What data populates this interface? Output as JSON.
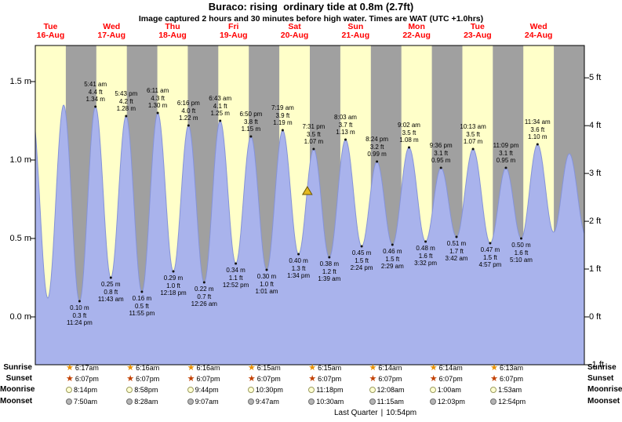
{
  "title": "Buraco: rising  ordinary tide at 0.8m (2.7ft)",
  "subtitle": "Image captured 2 hours and 30 minutes before high water. Times are WAT (UTC +1.0hrs)",
  "colors": {
    "plot_bg": "#ffffc9",
    "night": "#a0a0a0",
    "tide_fill": "#a9b3ec",
    "tide_stroke": "#8593d8",
    "day_label": "#ff0000",
    "marker_fill": "#e3b920",
    "marker_stroke": "#6b5400"
  },
  "chart_data": {
    "type": "area",
    "title": "Buraco: rising  ordinary tide at 0.8m (2.7ft)",
    "x_axis": {
      "start": "Tue 16-Aug 6:00am WAT",
      "hours_span": 216,
      "first_noon_hour": 6
    },
    "y_axis_left": {
      "unit": "m",
      "range_m": [
        -0.305,
        1.73
      ],
      "ticks": [
        {
          "label": "1.5 m",
          "m": 1.5
        },
        {
          "label": "1.0 m",
          "m": 1.0
        },
        {
          "label": "0.5 m",
          "m": 0.5
        },
        {
          "label": "0.0 m",
          "m": 0.0
        }
      ]
    },
    "y_axis_right": {
      "unit": "ft",
      "ticks": [
        {
          "label": "5 ft",
          "ft": 5
        },
        {
          "label": "4 ft",
          "ft": 4
        },
        {
          "label": "3 ft",
          "ft": 3
        },
        {
          "label": "2 ft",
          "ft": 2
        },
        {
          "label": "1 ft",
          "ft": 1
        },
        {
          "label": "0 ft",
          "ft": 0
        },
        {
          "label": "-1 ft",
          "ft": -1
        }
      ]
    },
    "days": [
      {
        "name": "Tue",
        "date": "16-Aug"
      },
      {
        "name": "Wed",
        "date": "17-Aug"
      },
      {
        "name": "Thu",
        "date": "18-Aug"
      },
      {
        "name": "Fri",
        "date": "19-Aug"
      },
      {
        "name": "Sat",
        "date": "20-Aug"
      },
      {
        "name": "Sun",
        "date": "21-Aug"
      },
      {
        "name": "Mon",
        "date": "22-Aug"
      },
      {
        "name": "Tue",
        "date": "23-Aug"
      },
      {
        "name": "Wed",
        "date": "24-Aug"
      }
    ],
    "current_marker": {
      "t": 107.0,
      "h": 0.8,
      "shape": "triangle"
    },
    "extremes": [
      {
        "t": -1.25,
        "h": 1.3,
        "kind": "high"
      },
      {
        "t": 4.92,
        "h": 0.12,
        "kind": "low"
      },
      {
        "t": 11.17,
        "h": 1.35,
        "kind": "high"
      },
      {
        "t": 17.4,
        "h": 0.1,
        "kind": "low",
        "ann": [
          "0.10 m",
          "0.3 ft",
          "11:24 pm"
        ]
      },
      {
        "t": 23.68,
        "h": 1.34,
        "kind": "high",
        "ann": [
          "5:41 am",
          "4.4 ft",
          "1.34 m"
        ]
      },
      {
        "t": 29.72,
        "h": 0.25,
        "kind": "low",
        "ann": [
          "0.25 m",
          "0.8 ft",
          "11:43 am"
        ]
      },
      {
        "t": 35.72,
        "h": 1.28,
        "kind": "high",
        "ann": [
          "5:43 pm",
          "4.2 ft",
          "1.28 m"
        ]
      },
      {
        "t": 41.92,
        "h": 0.16,
        "kind": "low",
        "ann": [
          "0.16 m",
          "0.5 ft",
          "11:55 pm"
        ]
      },
      {
        "t": 48.18,
        "h": 1.3,
        "kind": "high",
        "ann": [
          "6:11 am",
          "4.3 ft",
          "1.30 m"
        ]
      },
      {
        "t": 54.3,
        "h": 0.29,
        "kind": "low",
        "ann": [
          "0.29 m",
          "1.0 ft",
          "12:18 pm"
        ]
      },
      {
        "t": 60.27,
        "h": 1.22,
        "kind": "high",
        "ann": [
          "6:16 pm",
          "4.0 ft",
          "1.22 m"
        ]
      },
      {
        "t": 66.43,
        "h": 0.22,
        "kind": "low",
        "ann": [
          "0.22 m",
          "0.7 ft",
          "12:26 am"
        ]
      },
      {
        "t": 72.72,
        "h": 1.25,
        "kind": "high",
        "ann": [
          "6:43 am",
          "4.1 ft",
          "1.25 m"
        ]
      },
      {
        "t": 78.87,
        "h": 0.34,
        "kind": "low",
        "ann": [
          "0.34 m",
          "1.1 ft",
          "12:52 pm"
        ]
      },
      {
        "t": 84.83,
        "h": 1.15,
        "kind": "high",
        "ann": [
          "6:50 pm",
          "3.8 ft",
          "1.15 m"
        ]
      },
      {
        "t": 91.02,
        "h": 0.3,
        "kind": "low",
        "ann": [
          "0.30 m",
          "1.0 ft",
          "1:01 am"
        ]
      },
      {
        "t": 97.32,
        "h": 1.19,
        "kind": "high",
        "ann": [
          "7:19 am",
          "3.9 ft",
          "1.19 m"
        ]
      },
      {
        "t": 103.57,
        "h": 0.4,
        "kind": "low",
        "ann": [
          "0.40 m",
          "1.3 ft",
          "1:34 pm"
        ]
      },
      {
        "t": 109.52,
        "h": 1.07,
        "kind": "high",
        "ann": [
          "7:31 pm",
          "3.5 ft",
          "1.07 m"
        ]
      },
      {
        "t": 115.65,
        "h": 0.38,
        "kind": "low",
        "ann": [
          "0.38 m",
          "1.2 ft",
          "1:39 am"
        ]
      },
      {
        "t": 122.05,
        "h": 1.13,
        "kind": "high",
        "ann": [
          "8:03 am",
          "3.7 ft",
          "1.13 m"
        ]
      },
      {
        "t": 128.4,
        "h": 0.45,
        "kind": "low",
        "ann": [
          "0.45 m",
          "1.5 ft",
          "2:24 pm"
        ]
      },
      {
        "t": 134.4,
        "h": 0.99,
        "kind": "high",
        "ann": [
          "8:24 pm",
          "3.2 ft",
          "0.99 m"
        ]
      },
      {
        "t": 140.48,
        "h": 0.46,
        "kind": "low",
        "ann": [
          "0.46 m",
          "1.5 ft",
          "2:29 am"
        ]
      },
      {
        "t": 147.03,
        "h": 1.08,
        "kind": "high",
        "ann": [
          "9:02 am",
          "3.5 ft",
          "1.08 m"
        ]
      },
      {
        "t": 153.53,
        "h": 0.48,
        "kind": "low",
        "ann": [
          "0.48 m",
          "1.6 ft",
          "3:32 pm"
        ]
      },
      {
        "t": 159.6,
        "h": 0.95,
        "kind": "high",
        "ann": [
          "9:36 pm",
          "3.1 ft",
          "0.95 m"
        ]
      },
      {
        "t": 165.7,
        "h": 0.51,
        "kind": "low",
        "ann": [
          "0.51 m",
          "1.7 ft",
          "3:42 am"
        ]
      },
      {
        "t": 172.22,
        "h": 1.07,
        "kind": "high",
        "ann": [
          "10:13 am",
          "3.5 ft",
          "1.07 m"
        ]
      },
      {
        "t": 178.95,
        "h": 0.47,
        "kind": "low",
        "ann": [
          "0.47 m",
          "1.5 ft",
          "4:57 pm"
        ]
      },
      {
        "t": 185.15,
        "h": 0.95,
        "kind": "high",
        "ann": [
          "11:09 pm",
          "3.1 ft",
          "0.95 m"
        ]
      },
      {
        "t": 191.17,
        "h": 0.5,
        "kind": "low",
        "ann": [
          "0.50 m",
          "1.6 ft",
          "5:10 am"
        ]
      },
      {
        "t": 197.57,
        "h": 1.1,
        "kind": "high",
        "ann": [
          "11:34 am",
          "3.6 ft",
          "1.10 m"
        ]
      },
      {
        "t": 203.9,
        "h": 0.54,
        "kind": "low"
      },
      {
        "t": 210.1,
        "h": 1.04,
        "kind": "high"
      },
      {
        "t": 216.6,
        "h": 0.52,
        "kind": "low"
      }
    ]
  },
  "astro": {
    "rows": [
      {
        "label": "Sunrise",
        "icon": "sunrise-star-icon",
        "icon_glyph": "star",
        "icon_color": "#e89000",
        "times": [
          "6:17am",
          "6:16am",
          "6:16am",
          "6:15am",
          "6:15am",
          "6:14am",
          "6:14am",
          "6:13am"
        ]
      },
      {
        "label": "Sunset",
        "icon": "sunset-star-icon",
        "icon_glyph": "star",
        "icon_color": "#c24000",
        "times": [
          "6:07pm",
          "6:07pm",
          "6:07pm",
          "6:07pm",
          "6:07pm",
          "6:07pm",
          "6:07pm",
          "6:07pm"
        ]
      },
      {
        "label": "Moonrise",
        "icon": "moonrise-moon-icon",
        "icon_glyph": "circle",
        "icon_fill": "#ffffd2",
        "icon_border": "#9a9a5e",
        "times": [
          "8:14pm",
          "8:58pm",
          "9:44pm",
          "10:30pm",
          "11:18pm",
          "12:08am",
          "1:00am",
          "1:53am"
        ]
      },
      {
        "label": "Moonset",
        "icon": "moonset-moon-icon",
        "icon_glyph": "circle",
        "icon_fill": "#b4b4b4",
        "icon_border": "#6e6e6e",
        "times": [
          "7:50am",
          "8:28am",
          "9:07am",
          "9:47am",
          "10:30am",
          "11:15am",
          "12:03pm",
          "12:54pm"
        ]
      }
    ],
    "footer": {
      "phase": "Last Quarter",
      "separator": "|",
      "time": "10:54pm"
    }
  }
}
